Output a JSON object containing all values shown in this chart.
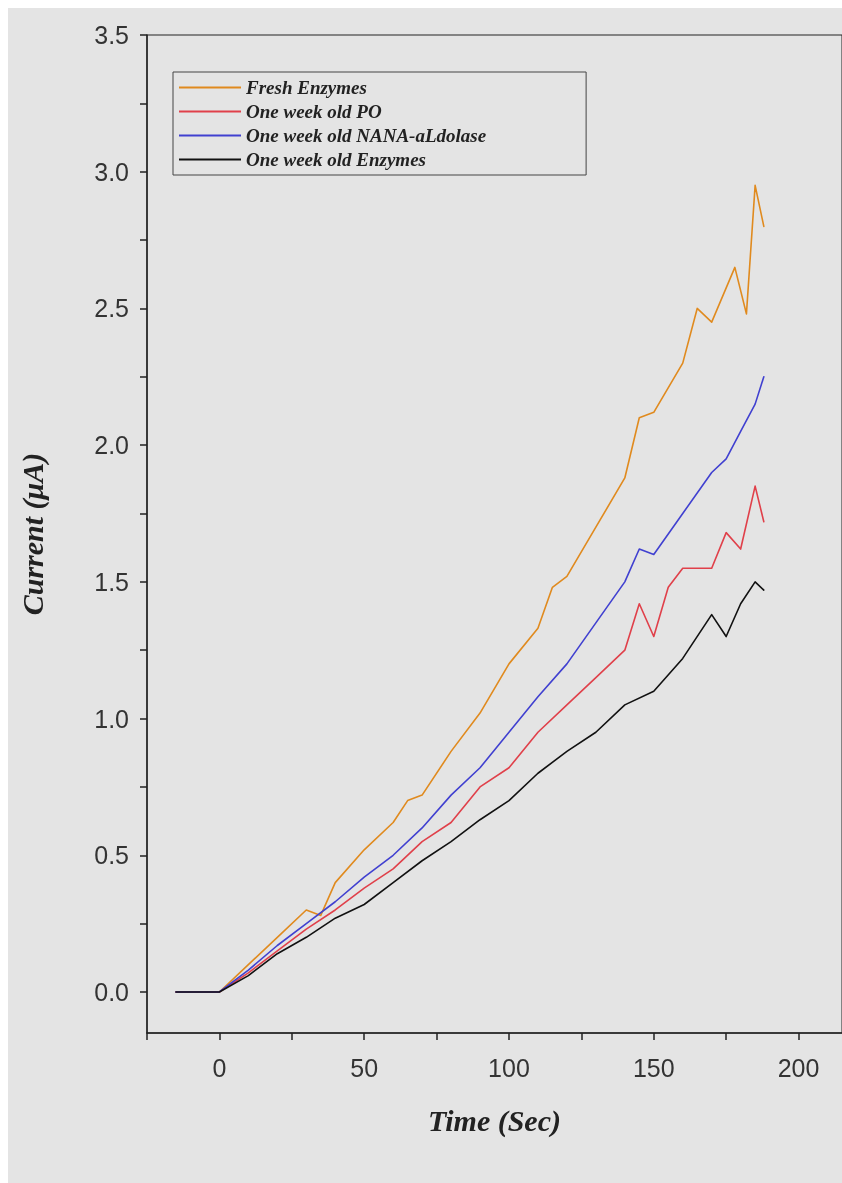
{
  "chart_data": {
    "type": "line",
    "xlabel": "Time (Sec)",
    "ylabel": "Current (μA)",
    "xlim": [
      -25,
      215
    ],
    "xticks": [
      {
        "value": -25,
        "label": null
      },
      0,
      {
        "value": 25,
        "label": null
      },
      50,
      {
        "value": 75,
        "label": null
      },
      100,
      {
        "value": 125,
        "label": null
      },
      150,
      {
        "value": 175,
        "label": null
      },
      200
    ],
    "ylim": [
      -0.15,
      3.5
    ],
    "yticks": [
      {
        "value": 0,
        "label": "0.0"
      },
      {
        "value": 0.25,
        "label": null
      },
      {
        "value": 0.5,
        "label": "0.5"
      },
      {
        "value": 0.75,
        "label": null
      },
      {
        "value": 1,
        "label": "1.0"
      },
      {
        "value": 1.25,
        "label": null
      },
      {
        "value": 1.5,
        "label": "1.5"
      },
      {
        "value": 1.75,
        "label": null
      },
      {
        "value": 2,
        "label": "2.0"
      },
      {
        "value": 2.25,
        "label": null
      },
      {
        "value": 2.5,
        "label": "2.5"
      },
      {
        "value": 2.75,
        "label": null
      },
      {
        "value": 3,
        "label": "3.0"
      },
      {
        "value": 3.25,
        "label": null
      },
      {
        "value": 3.5,
        "label": "3.5"
      }
    ],
    "grid": false,
    "legend": "top left",
    "marker": "none",
    "line_style": "solid",
    "series": [
      {
        "name": "Fresh Enzymes",
        "color": "#e08a1e",
        "x": [
          -15,
          -5,
          0,
          10,
          20,
          30,
          35,
          40,
          50,
          60,
          65,
          70,
          80,
          90,
          100,
          110,
          115,
          120,
          130,
          140,
          145,
          150,
          160,
          165,
          170,
          178,
          182,
          185,
          188
        ],
        "values": [
          0,
          0,
          0,
          0.1,
          0.2,
          0.3,
          0.28,
          0.4,
          0.52,
          0.62,
          0.7,
          0.72,
          0.88,
          1.02,
          1.2,
          1.33,
          1.48,
          1.52,
          1.7,
          1.88,
          2.1,
          2.12,
          2.3,
          2.5,
          2.45,
          2.65,
          2.48,
          2.95,
          2.8
        ]
      },
      {
        "name": "One week old PO",
        "color": "#e0404a",
        "x": [
          -15,
          -5,
          0,
          10,
          20,
          30,
          40,
          50,
          60,
          70,
          80,
          90,
          100,
          110,
          120,
          130,
          140,
          145,
          150,
          155,
          160,
          170,
          175,
          180,
          185,
          188
        ],
        "values": [
          0,
          0,
          0,
          0.07,
          0.15,
          0.23,
          0.3,
          0.38,
          0.45,
          0.55,
          0.62,
          0.75,
          0.82,
          0.95,
          1.05,
          1.15,
          1.25,
          1.42,
          1.3,
          1.48,
          1.55,
          1.55,
          1.68,
          1.62,
          1.85,
          1.72
        ]
      },
      {
        "name": "One week old NANA-aLdolase",
        "color": "#4040d0",
        "x": [
          -15,
          -5,
          0,
          10,
          20,
          30,
          40,
          50,
          60,
          70,
          80,
          90,
          100,
          110,
          120,
          130,
          140,
          145,
          150,
          160,
          170,
          175,
          180,
          185,
          188
        ],
        "values": [
          0,
          0,
          0,
          0.08,
          0.17,
          0.25,
          0.33,
          0.42,
          0.5,
          0.6,
          0.72,
          0.82,
          0.95,
          1.08,
          1.2,
          1.35,
          1.5,
          1.62,
          1.6,
          1.75,
          1.9,
          1.95,
          2.05,
          2.15,
          2.25
        ]
      },
      {
        "name": "One week old Enzymes",
        "color": "#111111",
        "x": [
          -15,
          -5,
          0,
          10,
          20,
          30,
          40,
          50,
          60,
          70,
          80,
          90,
          100,
          110,
          120,
          130,
          140,
          150,
          160,
          170,
          175,
          180,
          185,
          188
        ],
        "values": [
          0,
          0,
          0,
          0.06,
          0.14,
          0.2,
          0.27,
          0.32,
          0.4,
          0.48,
          0.55,
          0.63,
          0.7,
          0.8,
          0.88,
          0.95,
          1.05,
          1.1,
          1.22,
          1.38,
          1.3,
          1.42,
          1.5,
          1.47
        ]
      }
    ]
  }
}
